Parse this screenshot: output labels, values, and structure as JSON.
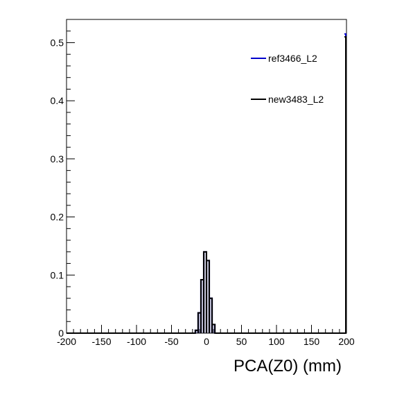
{
  "chart_data": {
    "type": "line",
    "style": "step-histogram",
    "xlabel": "PCA(Z0) (mm)",
    "ylabel": "",
    "xlim": [
      -200,
      200
    ],
    "ylim": [
      0,
      0.54
    ],
    "x_ticks": [
      "-200",
      "-150",
      "-100",
      "-50",
      "0",
      "50",
      "100",
      "150",
      "200"
    ],
    "y_ticks": [
      "0",
      "0.1",
      "0.2",
      "0.3",
      "0.4",
      "0.5"
    ],
    "x_tick_values": [
      -200,
      -150,
      -100,
      -50,
      0,
      50,
      100,
      150,
      200
    ],
    "y_tick_values": [
      0,
      0.1,
      0.2,
      0.3,
      0.4,
      0.5
    ],
    "bin_width": 4,
    "legend_position": "top-right",
    "series": [
      {
        "name": "ref3466_L2",
        "color": "#0000cc",
        "bins": [
          [
            -16,
            0.005
          ],
          [
            -12,
            0.035
          ],
          [
            -8,
            0.092
          ],
          [
            -4,
            0.14
          ],
          [
            0,
            0.125
          ],
          [
            4,
            0.06
          ],
          [
            8,
            0.015
          ]
        ],
        "overflow_edge": 0.515
      },
      {
        "name": "new3483_L2",
        "color": "#000000",
        "bins": [
          [
            -16,
            0.005
          ],
          [
            -12,
            0.035
          ],
          [
            -8,
            0.092
          ],
          [
            -4,
            0.14
          ],
          [
            0,
            0.125
          ],
          [
            4,
            0.06
          ],
          [
            8,
            0.015
          ]
        ],
        "overflow_edge": 0.51
      }
    ]
  }
}
